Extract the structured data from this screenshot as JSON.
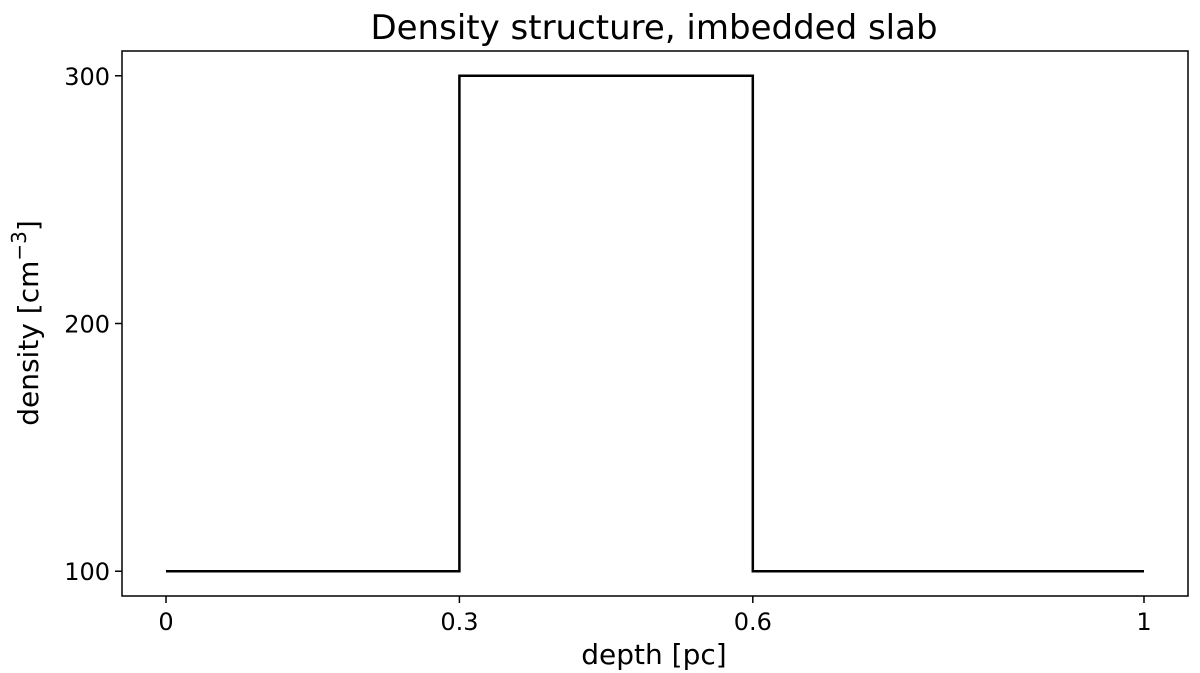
{
  "chart_data": {
    "type": "line",
    "title": "Density structure, imbedded slab",
    "xlabel": "depth [pc]",
    "ylabel": "density [cm",
    "ylabel_superscript": "−3",
    "ylabel_suffix": "]",
    "xlim": [
      -0.045,
      1.045
    ],
    "ylim": [
      90,
      310
    ],
    "xticks": [
      {
        "value": 0,
        "label": "0"
      },
      {
        "value": 0.3,
        "label": "0.3"
      },
      {
        "value": 0.6,
        "label": "0.6"
      },
      {
        "value": 1,
        "label": "1"
      }
    ],
    "yticks": [
      {
        "value": 100,
        "label": "100"
      },
      {
        "value": 200,
        "label": "200"
      },
      {
        "value": 300,
        "label": "300"
      }
    ],
    "grid": false,
    "series": [
      {
        "color": "#000000",
        "x": [
          0,
          0.3,
          0.3,
          0.6,
          0.6,
          1
        ],
        "y": [
          100,
          100,
          300,
          300,
          100,
          100
        ]
      }
    ]
  }
}
